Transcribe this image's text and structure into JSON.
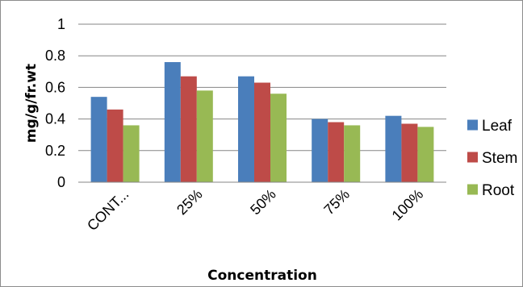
{
  "chart_data": {
    "type": "bar",
    "title": "",
    "xlabel": "Concentration",
    "ylabel": "mg/g/fr.wt",
    "ylim": [
      0,
      1
    ],
    "yticks": [
      "0",
      "0.2",
      "0.4",
      "0.6",
      "0.8",
      "1"
    ],
    "categories": [
      "CONT...",
      "25%",
      "50%",
      "75%",
      "100%"
    ],
    "series": [
      {
        "name": "Leaf",
        "color": "#4a7ebb",
        "values": [
          0.54,
          0.76,
          0.67,
          0.4,
          0.42
        ]
      },
      {
        "name": "Stem",
        "color": "#be4b48",
        "values": [
          0.46,
          0.67,
          0.63,
          0.38,
          0.37
        ]
      },
      {
        "name": "Root",
        "color": "#98b954",
        "values": [
          0.36,
          0.58,
          0.56,
          0.36,
          0.35
        ]
      }
    ],
    "grid": true,
    "legend": "right"
  }
}
